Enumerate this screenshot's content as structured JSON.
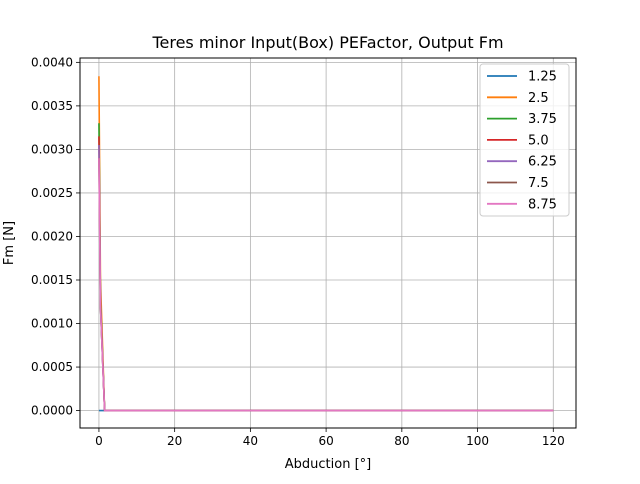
{
  "chart_data": {
    "type": "line",
    "title": "Teres minor Input(Box) PEFactor, Output Fm",
    "xlabel": "Abduction [°]",
    "ylabel": "Fm [N]",
    "xlim": [
      -5,
      126
    ],
    "ylim": [
      -0.0002,
      0.00405
    ],
    "xticks": [
      0,
      20,
      40,
      60,
      80,
      100,
      120
    ],
    "xtick_labels": [
      "0",
      "20",
      "40",
      "60",
      "80",
      "100",
      "120"
    ],
    "yticks": [
      0,
      0.0005,
      0.001,
      0.0015,
      0.002,
      0.0025,
      0.003,
      0.0035,
      0.004
    ],
    "ytick_labels": [
      "0.0000",
      "0.0005",
      "0.0010",
      "0.0015",
      "0.0020",
      "0.0025",
      "0.0030",
      "0.0035",
      "0.0040"
    ],
    "grid": true,
    "legend_position": "top-right",
    "series": [
      {
        "name": "1.25",
        "color": "#1f77b4",
        "x": [
          0,
          1,
          1.5,
          120
        ],
        "y": [
          0.0,
          0.0,
          0.0,
          0.0
        ]
      },
      {
        "name": "2.5",
        "color": "#ff7f0e",
        "x": [
          0,
          0.4,
          1.5,
          120
        ],
        "y": [
          0.00384,
          0.0015,
          0.0,
          0.0
        ]
      },
      {
        "name": "3.75",
        "color": "#2ca02c",
        "x": [
          0,
          0.4,
          1.5,
          120
        ],
        "y": [
          0.0033,
          0.0013,
          0.0,
          0.0
        ]
      },
      {
        "name": "5.0",
        "color": "#d62728",
        "x": [
          0,
          0.4,
          1.5,
          120
        ],
        "y": [
          0.00315,
          0.00125,
          0.0,
          0.0
        ]
      },
      {
        "name": "6.25",
        "color": "#9467bd",
        "x": [
          0,
          0.4,
          1.5,
          120
        ],
        "y": [
          0.00305,
          0.0012,
          0.0,
          0.0
        ]
      },
      {
        "name": "7.5",
        "color": "#8c564b",
        "x": [
          0,
          0.4,
          1.5,
          120
        ],
        "y": [
          0.0029,
          0.0012,
          0.0,
          0.0
        ]
      },
      {
        "name": "8.75",
        "color": "#e377c2",
        "x": [
          0,
          0.4,
          1.5,
          120
        ],
        "y": [
          0.0029,
          0.0012,
          0.0,
          0.0
        ]
      }
    ]
  }
}
